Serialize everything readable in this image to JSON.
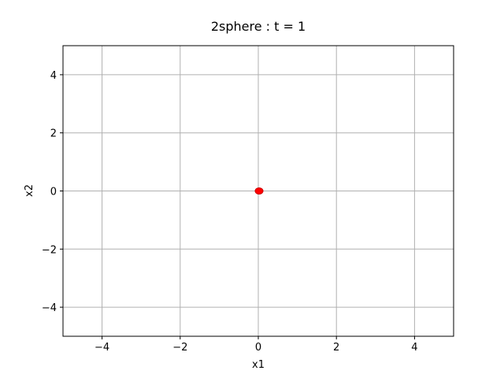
{
  "chart_data": {
    "type": "scatter",
    "title": "2sphere : t =  1",
    "xlabel": "x1",
    "ylabel": "x2",
    "xlim": [
      -5,
      5
    ],
    "ylim": [
      -5,
      5
    ],
    "xticks": [
      -4,
      -2,
      0,
      2,
      4
    ],
    "yticks": [
      -4,
      -2,
      0,
      2,
      4
    ],
    "xtick_labels": [
      "−4",
      "−2",
      "0",
      "2",
      "4"
    ],
    "ytick_labels": [
      "−4",
      "−2",
      "0",
      "2",
      "4"
    ],
    "grid": true,
    "points": [
      {
        "x": 0.0,
        "y": 0.0
      }
    ],
    "point_color": "#ff0000",
    "point_edge_color": "#cc0000",
    "grid_color": "#b0b0b0"
  }
}
